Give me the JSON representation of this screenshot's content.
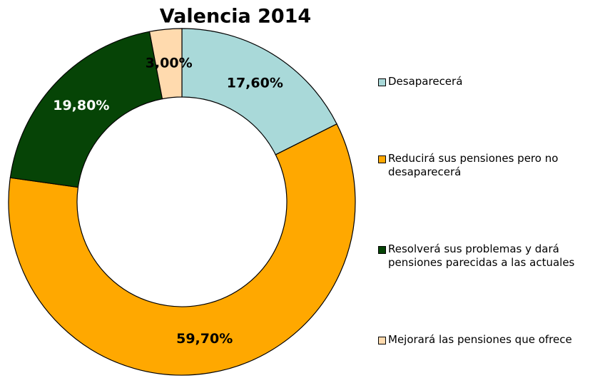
{
  "chart_data": {
    "type": "donut",
    "title": "Valencia 2014",
    "categories": [
      "Desaparecerá",
      "Reducirá sus pensiones pero no desaparecerá",
      "Resolverá sus problemas y dará pensiones parecidas a las actuales",
      "Mejorará las pensiones que ofrece"
    ],
    "values": [
      17.6,
      59.7,
      19.8,
      3.0
    ],
    "value_labels": [
      "17,60%",
      "59,70%",
      "19,80%",
      "3,00%"
    ],
    "colors": [
      "#a9d9d9",
      "#ffa800",
      "#064406",
      "#ffdaae"
    ],
    "legend": "right"
  }
}
